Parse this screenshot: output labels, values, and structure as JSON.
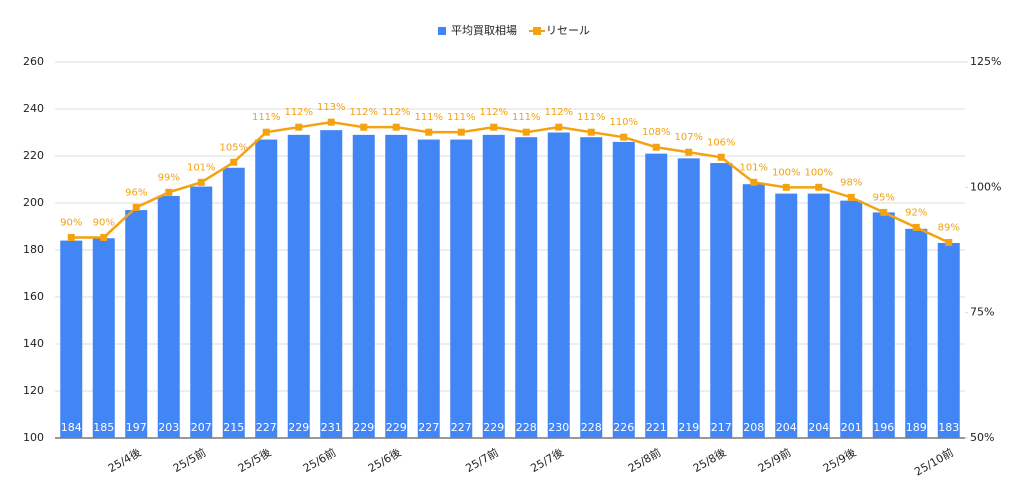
{
  "chart_data": {
    "type": "bar",
    "categories": [
      null,
      null,
      "25/4後",
      null,
      "25/5前",
      null,
      "25/5後",
      null,
      "25/6前",
      null,
      "25/6後",
      null,
      null,
      "25/7前",
      null,
      "25/7後",
      null,
      null,
      "25/8前",
      null,
      "25/8後",
      null,
      "25/9前",
      null,
      "25/9後",
      null,
      null,
      "25/10前"
    ],
    "series": [
      {
        "name": "平均買取相場",
        "color": "#4285f4",
        "type": "bar",
        "values": [
          184,
          185,
          197,
          203,
          207,
          215,
          227,
          229,
          231,
          229,
          229,
          227,
          227,
          229,
          228,
          230,
          228,
          226,
          221,
          219,
          217,
          208,
          204,
          204,
          201,
          196,
          189,
          183
        ]
      },
      {
        "name": "リセール",
        "color": "#f4a20f",
        "type": "line",
        "axis": "y2",
        "values": [
          90,
          90,
          96,
          99,
          101,
          105,
          111,
          112,
          113,
          112,
          112,
          111,
          111,
          112,
          111,
          112,
          111,
          110,
          108,
          107,
          106,
          101,
          100,
          100,
          98,
          95,
          92,
          89
        ],
        "value_labels": [
          "90%",
          "90%",
          "96%",
          "99%",
          "101%",
          "105%",
          "111%",
          "112%",
          "113%",
          "112%",
          "112%",
          "111%",
          "111%",
          "112%",
          "111%",
          "112%",
          "111%",
          "110%",
          "108%",
          "107%",
          "106%",
          "101%",
          "100%",
          "100%",
          "98%",
          "95%",
          "92%",
          "89%"
        ]
      }
    ],
    "ylim": [
      100,
      260
    ],
    "yticks": [
      100,
      120,
      140,
      160,
      180,
      200,
      220,
      240,
      260
    ],
    "y2lim": [
      50,
      125
    ],
    "y2ticks": [
      {
        "value": 50,
        "label": "50%"
      },
      {
        "value": 75,
        "label": "75%"
      },
      {
        "value": 100,
        "label": "100%"
      },
      {
        "value": 125,
        "label": "125%"
      }
    ],
    "grid": true,
    "legend": "top"
  }
}
